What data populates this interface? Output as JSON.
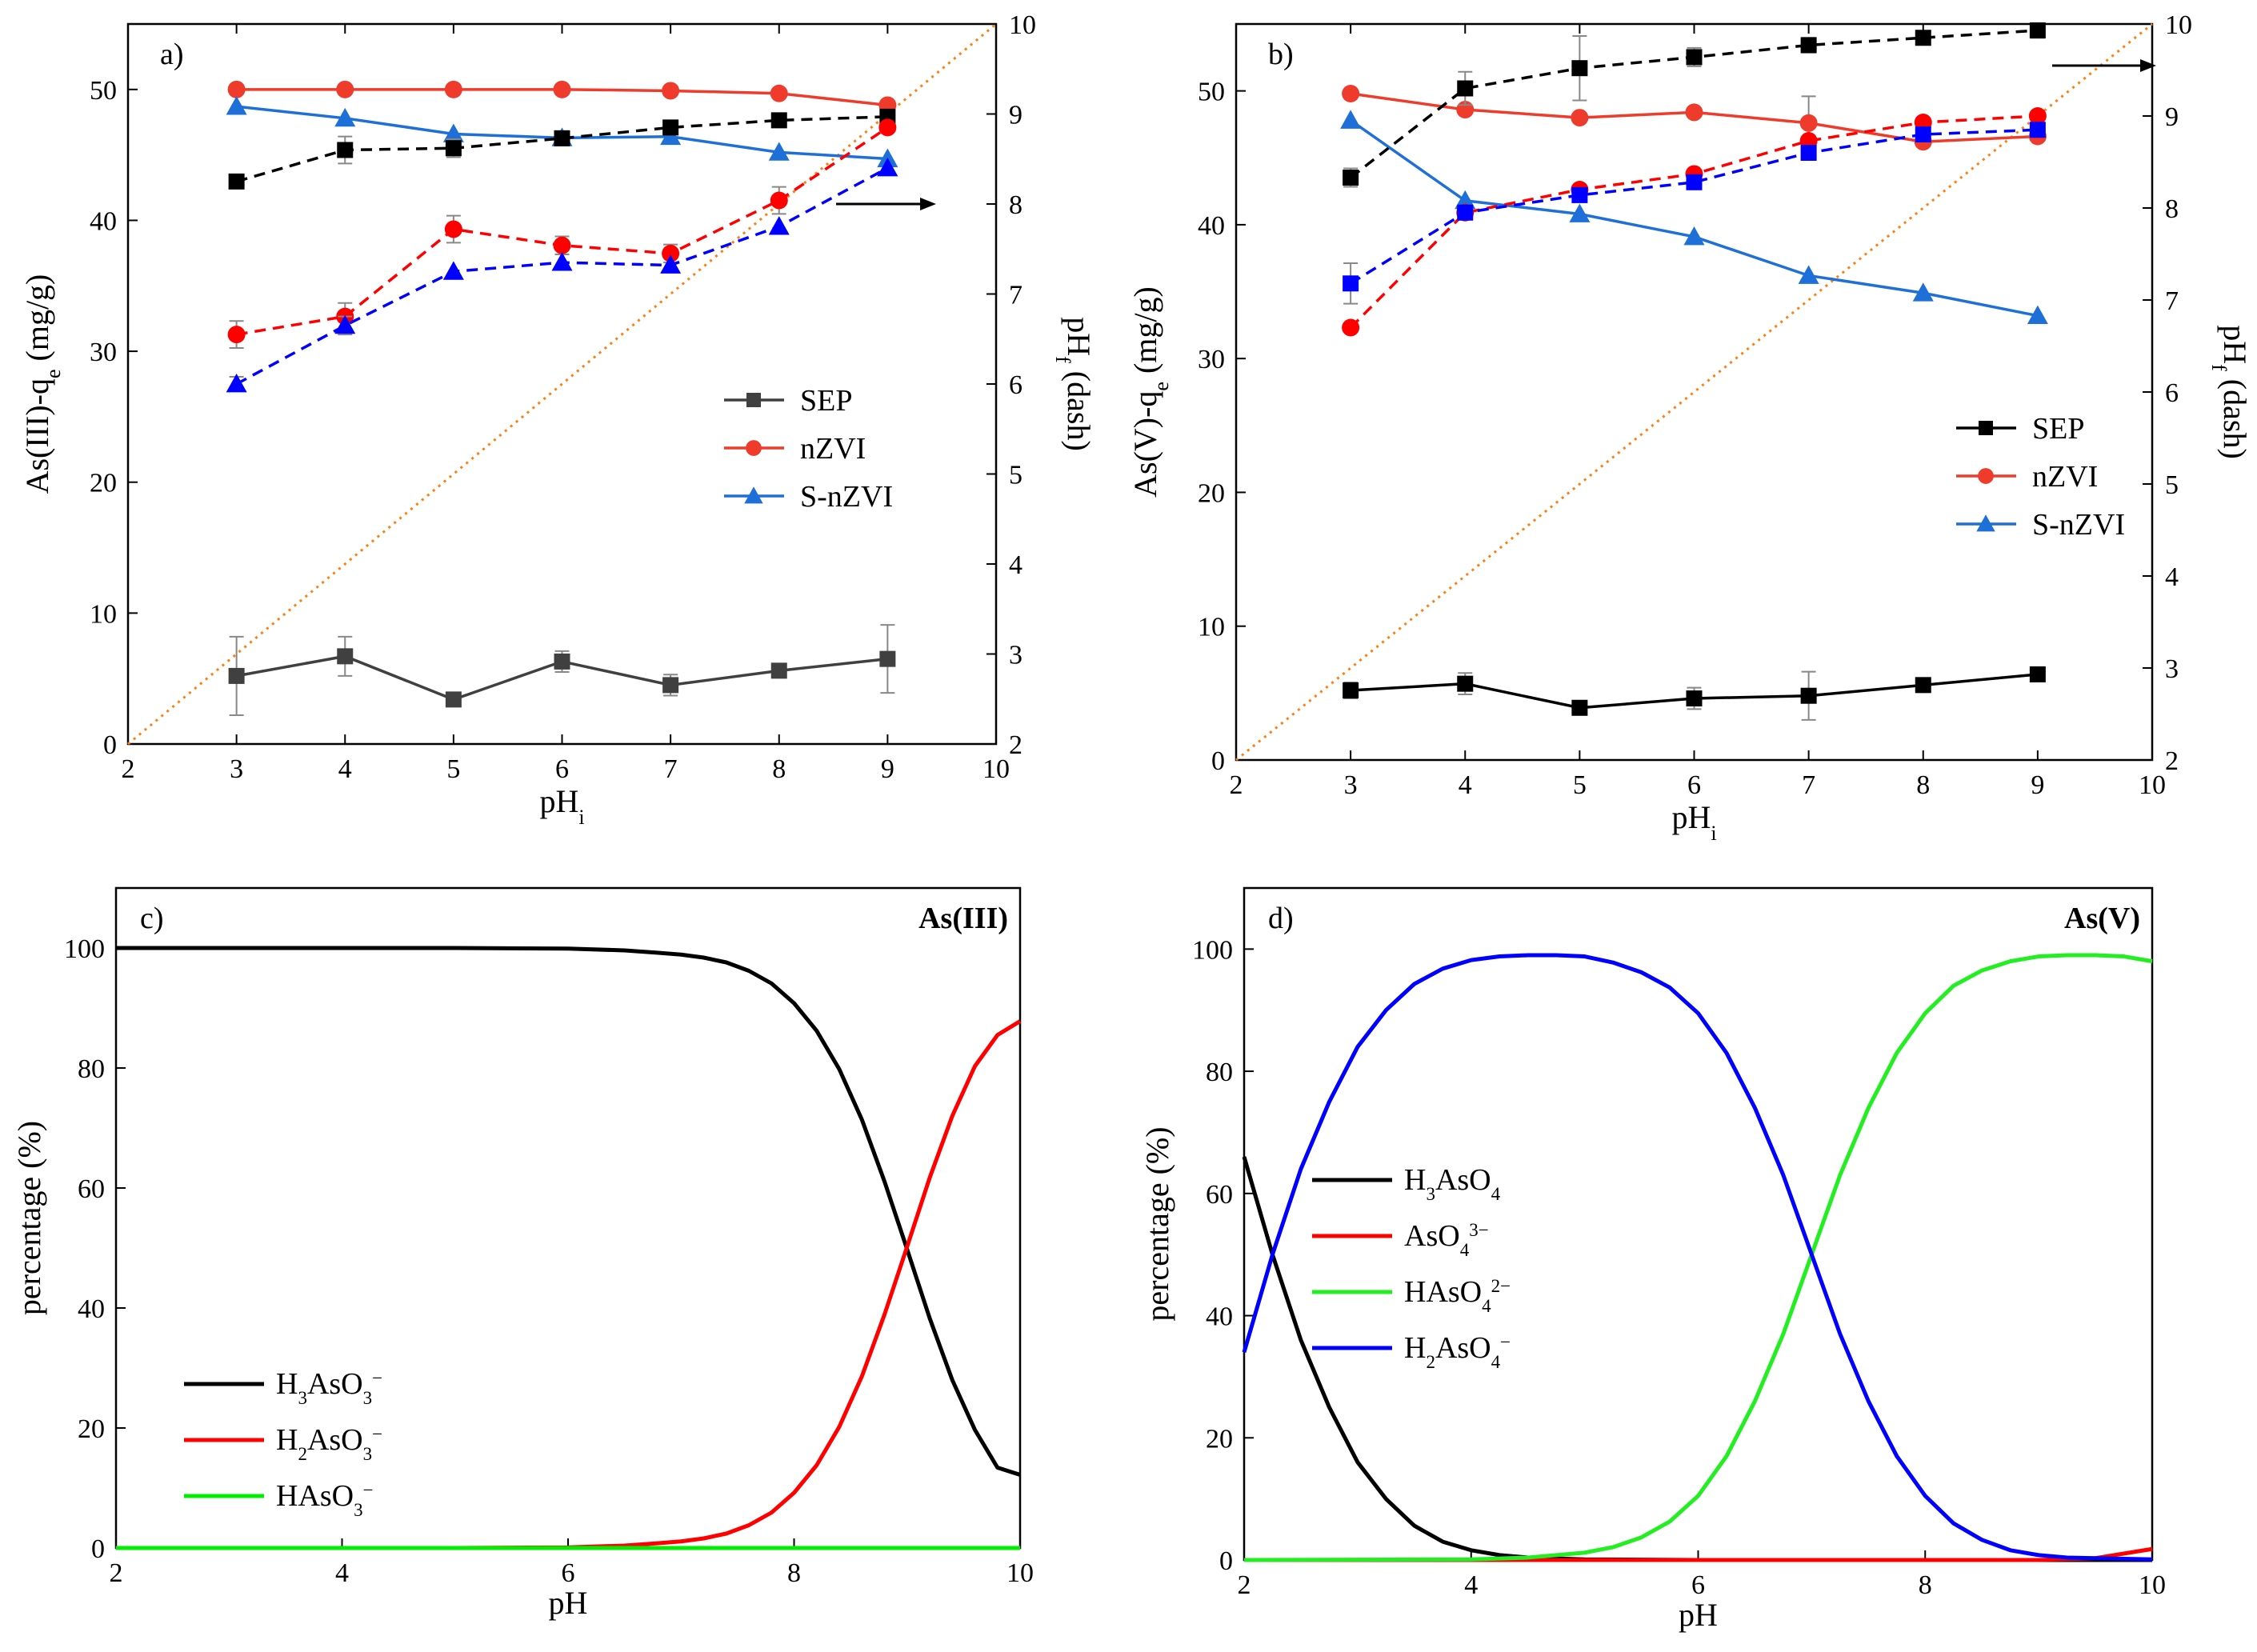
{
  "chart_data": [
    {
      "type": "line",
      "panel_label": "a)",
      "title": "",
      "xlabel": "pH",
      "xlabel_sub": "i",
      "ylabel": "As(III)-q",
      "ylabel_sub": "e",
      "ylabel_unit": " (mg/g)",
      "y2label": "pH",
      "y2label_sub": "f",
      "y2label_tail": " (dash)",
      "xlim": [
        2,
        10
      ],
      "ylim": [
        0,
        55
      ],
      "y2lim": [
        2,
        10
      ],
      "xticks": [
        "2",
        "3",
        "4",
        "5",
        "6",
        "7",
        "8",
        "9",
        "10"
      ],
      "yticks": [
        "0",
        "10",
        "20",
        "30",
        "40",
        "50"
      ],
      "y2ticks": [
        "2",
        "3",
        "4",
        "5",
        "6",
        "7",
        "8",
        "9",
        "10"
      ],
      "legend_position": "center-right",
      "arrow_annotation": "points to right axis",
      "reference_line": {
        "name": "pHf = pHi",
        "color": "#ff7f0e"
      },
      "series": [
        {
          "name": "SEP",
          "axis": "left",
          "marker": "square",
          "color": "#404040",
          "dashed": false,
          "in_legend": true,
          "x": [
            3,
            4,
            5,
            6,
            7,
            8,
            9
          ],
          "values": [
            5.2,
            6.7,
            3.4,
            6.3,
            4.5,
            5.6,
            6.5
          ],
          "errors": [
            3.0,
            1.5,
            0.4,
            0.8,
            0.8,
            0.4,
            2.6
          ]
        },
        {
          "name": "nZVI",
          "axis": "left",
          "marker": "circle",
          "color": "#ef3b2c",
          "dashed": false,
          "in_legend": true,
          "x": [
            3,
            4,
            5,
            6,
            7,
            8,
            9
          ],
          "values": [
            50.0,
            50.0,
            50.0,
            50.0,
            49.9,
            49.7,
            48.8
          ],
          "errors": [
            0,
            0,
            0,
            0,
            0,
            0,
            0
          ]
        },
        {
          "name": "S-nZVI",
          "axis": "left",
          "marker": "triangle",
          "color": "#1f6fd8",
          "dashed": false,
          "in_legend": true,
          "x": [
            3,
            4,
            5,
            6,
            7,
            8,
            9
          ],
          "values": [
            48.7,
            47.8,
            46.6,
            46.3,
            46.4,
            45.2,
            44.7
          ],
          "errors": [
            0,
            0,
            0,
            0,
            0,
            0,
            0
          ]
        },
        {
          "name": "SEP pHf",
          "axis": "right",
          "marker": "square",
          "color": "#000000",
          "dashed": true,
          "in_legend": false,
          "x": [
            3,
            4,
            5,
            6,
            7,
            8,
            9
          ],
          "values": [
            8.25,
            8.6,
            8.62,
            8.73,
            8.85,
            8.93,
            8.97
          ],
          "errors": [
            0,
            0.15,
            0.1,
            0.08,
            0.05,
            0,
            0
          ]
        },
        {
          "name": "nZVI pHf",
          "axis": "right",
          "marker": "circle",
          "color": "#ff0000",
          "dashed": true,
          "in_legend": false,
          "x": [
            3,
            4,
            5,
            6,
            7,
            8,
            9
          ],
          "values": [
            6.55,
            6.75,
            7.72,
            7.54,
            7.45,
            8.04,
            8.85
          ],
          "errors": [
            0.15,
            0.15,
            0.15,
            0.1,
            0.1,
            0.15,
            0
          ]
        },
        {
          "name": "S-nZVI pHf",
          "axis": "right",
          "marker": "triangle",
          "color": "#0000ff",
          "dashed": true,
          "in_legend": false,
          "x": [
            3,
            4,
            5,
            6,
            7,
            8,
            9
          ],
          "values": [
            6.0,
            6.65,
            7.25,
            7.35,
            7.32,
            7.75,
            8.4
          ],
          "errors": [
            0.08,
            0.1,
            0,
            0,
            0,
            0,
            0
          ]
        }
      ]
    },
    {
      "type": "line",
      "panel_label": "b)",
      "title": "",
      "xlabel": "pH",
      "xlabel_sub": "i",
      "ylabel": "As(V)-q",
      "ylabel_sub": "e",
      "ylabel_unit": " (mg/g)",
      "y2label": "pH",
      "y2label_sub": "f",
      "y2label_tail": " (dash)",
      "xlim": [
        2,
        10
      ],
      "ylim": [
        0,
        55
      ],
      "y2lim": [
        2,
        10
      ],
      "xticks": [
        "2",
        "3",
        "4",
        "5",
        "6",
        "7",
        "8",
        "9",
        "10"
      ],
      "yticks": [
        "0",
        "10",
        "20",
        "30",
        "40",
        "50"
      ],
      "y2ticks": [
        "2",
        "3",
        "4",
        "5",
        "6",
        "7",
        "8",
        "9",
        "10"
      ],
      "legend_position": "center-right",
      "arrow_annotation": "points to right axis",
      "reference_line": {
        "name": "pHf = pHi",
        "color": "#ff7f0e"
      },
      "series": [
        {
          "name": "SEP",
          "axis": "left",
          "marker": "square",
          "color": "#000000",
          "dashed": false,
          "in_legend": true,
          "x": [
            3,
            4,
            5,
            6,
            7,
            8,
            9
          ],
          "values": [
            5.2,
            5.7,
            3.9,
            4.6,
            4.8,
            5.6,
            6.4
          ],
          "errors": [
            0.6,
            0.8,
            0.3,
            0.8,
            1.8,
            0.3,
            0.4
          ]
        },
        {
          "name": "nZVI",
          "axis": "left",
          "marker": "circle",
          "color": "#ef3b2c",
          "dashed": false,
          "in_legend": true,
          "x": [
            3,
            4,
            5,
            6,
            7,
            8,
            9
          ],
          "values": [
            49.8,
            48.6,
            48.0,
            48.4,
            47.6,
            46.2,
            46.6
          ],
          "errors": [
            0,
            0,
            0,
            0,
            2.0,
            0,
            0
          ]
        },
        {
          "name": "S-nZVI",
          "axis": "left",
          "marker": "triangle",
          "color": "#1f6fd8",
          "dashed": false,
          "in_legend": true,
          "x": [
            3,
            4,
            5,
            6,
            7,
            8,
            9
          ],
          "values": [
            47.8,
            41.8,
            40.8,
            39.1,
            36.2,
            34.9,
            33.2
          ],
          "errors": [
            0,
            0,
            0,
            0,
            0,
            0,
            0
          ]
        },
        {
          "name": "SEP pHf",
          "axis": "right",
          "marker": "square",
          "color": "#000000",
          "dashed": true,
          "in_legend": false,
          "x": [
            3,
            4,
            5,
            6,
            7,
            8,
            9
          ],
          "values": [
            8.33,
            9.3,
            9.52,
            9.64,
            9.77,
            9.85,
            9.93
          ],
          "errors": [
            0.1,
            0.18,
            0.35,
            0.1,
            0.08,
            0,
            0.08
          ]
        },
        {
          "name": "nZVI pHf",
          "axis": "right",
          "marker": "circle",
          "color": "#ff0000",
          "dashed": true,
          "in_legend": false,
          "x": [
            3,
            4,
            5,
            6,
            7,
            8,
            9
          ],
          "values": [
            6.7,
            7.95,
            8.2,
            8.37,
            8.73,
            8.93,
            9.0
          ],
          "errors": [
            0,
            0,
            0,
            0,
            0,
            0,
            0
          ]
        },
        {
          "name": "S-nZVI pHf",
          "axis": "right",
          "marker": "square",
          "color": "#0000ff",
          "dashed": true,
          "in_legend": false,
          "x": [
            3,
            4,
            5,
            6,
            7,
            8,
            9
          ],
          "values": [
            7.18,
            7.95,
            8.14,
            8.28,
            8.6,
            8.8,
            8.85
          ],
          "errors": [
            0.22,
            0,
            0,
            0,
            0,
            0,
            0
          ]
        }
      ]
    },
    {
      "type": "line",
      "panel_label": "c)",
      "title": "As(III)",
      "xlabel": "pH",
      "ylabel": "percentage (%)",
      "xlim": [
        2,
        10
      ],
      "ylim": [
        0,
        110
      ],
      "xticks": [
        "2",
        "4",
        "6",
        "8",
        "10"
      ],
      "yticks": [
        "0",
        "20",
        "40",
        "60",
        "80",
        "100"
      ],
      "legend_position": "center-left",
      "series": [
        {
          "name_parts": [
            [
              "H",
              ""
            ],
            [
              "3",
              "sub"
            ],
            [
              "AsO",
              ""
            ],
            [
              "3",
              "sub"
            ],
            [
              "−",
              "sup"
            ]
          ],
          "color": "#000000",
          "x": [
            2,
            3,
            4,
            5,
            6,
            6.5,
            6.8,
            7,
            7.2,
            7.4,
            7.6,
            7.8,
            8,
            8.2,
            8.4,
            8.6,
            8.8,
            9,
            9.2,
            9.4,
            9.6,
            9.8,
            10
          ],
          "values": [
            100,
            100,
            100,
            100,
            99.9,
            99.6,
            99.2,
            98.9,
            98.4,
            97.6,
            96.2,
            94.1,
            90.8,
            86.2,
            79.8,
            71.4,
            61.1,
            49.8,
            38.3,
            28.0,
            19.7,
            13.4,
            12.2
          ]
        },
        {
          "name_parts": [
            [
              "H",
              ""
            ],
            [
              "2",
              "sub"
            ],
            [
              "AsO",
              ""
            ],
            [
              "3",
              "sub"
            ],
            [
              "−",
              "sup"
            ]
          ],
          "color": "#ff0000",
          "x": [
            2,
            3,
            4,
            5,
            6,
            6.5,
            6.8,
            7,
            7.2,
            7.4,
            7.6,
            7.8,
            8,
            8.2,
            8.4,
            8.6,
            8.8,
            9,
            9.2,
            9.4,
            9.6,
            9.8,
            10
          ],
          "values": [
            0,
            0,
            0,
            0,
            0.1,
            0.4,
            0.8,
            1.1,
            1.6,
            2.4,
            3.8,
            5.9,
            9.2,
            13.8,
            20.2,
            28.6,
            38.9,
            50.2,
            61.7,
            72.0,
            80.3,
            85.5,
            87.8
          ]
        },
        {
          "name_parts": [
            [
              "HAsO",
              ""
            ],
            [
              "3",
              "sub"
            ],
            [
              "−",
              "sup"
            ]
          ],
          "color": "#00ee00",
          "x": [
            2,
            10
          ],
          "values": [
            0,
            0
          ]
        }
      ]
    },
    {
      "type": "line",
      "panel_label": "d)",
      "title": "As(V)",
      "xlabel": "pH",
      "ylabel": "percentage (%)",
      "xlim": [
        2,
        10
      ],
      "ylim": [
        0,
        110
      ],
      "xticks": [
        "2",
        "4",
        "6",
        "8",
        "10"
      ],
      "yticks": [
        "0",
        "20",
        "40",
        "60",
        "80",
        "100"
      ],
      "legend_position": "center-left",
      "series": [
        {
          "name_parts": [
            [
              "H",
              ""
            ],
            [
              "3",
              "sub"
            ],
            [
              "AsO",
              ""
            ],
            [
              "4",
              "sub"
            ]
          ],
          "color": "#000000",
          "x": [
            2,
            2.25,
            2.5,
            2.75,
            3,
            3.25,
            3.5,
            3.75,
            4,
            4.25,
            4.5,
            5,
            6,
            7,
            8,
            9,
            10
          ],
          "values": [
            66,
            50,
            36,
            25,
            16,
            10,
            5.6,
            3.0,
            1.6,
            0.8,
            0.4,
            0.1,
            0,
            0,
            0,
            0,
            0
          ]
        },
        {
          "name_parts": [
            [
              "AsO",
              ""
            ],
            [
              "4",
              "sub"
            ],
            [
              "3−",
              "sup"
            ]
          ],
          "color": "#ff0000",
          "x": [
            2,
            9,
            9.5,
            10
          ],
          "values": [
            0,
            0,
            0.3,
            1.8
          ]
        },
        {
          "name_parts": [
            [
              "HAsO",
              ""
            ],
            [
              "4",
              "sub"
            ],
            [
              "2−",
              "sup"
            ]
          ],
          "color": "#22ee22",
          "x": [
            2,
            4,
            4.5,
            5,
            5.25,
            5.5,
            5.75,
            6,
            6.25,
            6.5,
            6.75,
            7,
            7.25,
            7.5,
            7.75,
            8,
            8.25,
            8.5,
            8.75,
            9,
            9.25,
            9.5,
            9.75,
            10
          ],
          "values": [
            0,
            0.1,
            0.4,
            1.2,
            2.1,
            3.7,
            6.3,
            10.5,
            17,
            26,
            37,
            50,
            63,
            74,
            83,
            89.5,
            94,
            96.5,
            98,
            98.8,
            99,
            99,
            98.8,
            98
          ]
        },
        {
          "name_parts": [
            [
              "H",
              ""
            ],
            [
              "2",
              "sub"
            ],
            [
              "AsO",
              ""
            ],
            [
              "4",
              "sub"
            ],
            [
              "−",
              "sup"
            ]
          ],
          "color": "#0000ff",
          "x": [
            2,
            2.25,
            2.5,
            2.75,
            3,
            3.25,
            3.5,
            3.75,
            4,
            4.25,
            4.5,
            4.75,
            5,
            5.25,
            5.5,
            5.75,
            6,
            6.25,
            6.5,
            6.75,
            7,
            7.25,
            7.5,
            7.75,
            8,
            8.25,
            8.5,
            8.75,
            9,
            9.25,
            9.5,
            9.75,
            10
          ],
          "values": [
            34,
            50,
            64,
            75,
            84,
            90,
            94.3,
            96.8,
            98.2,
            98.8,
            99,
            99,
            98.8,
            97.8,
            96.2,
            93.7,
            89.5,
            83,
            74,
            63,
            50,
            37,
            26,
            17,
            10.5,
            6,
            3.3,
            1.6,
            0.8,
            0.4,
            0.3,
            0.2,
            0.1
          ]
        }
      ]
    }
  ]
}
